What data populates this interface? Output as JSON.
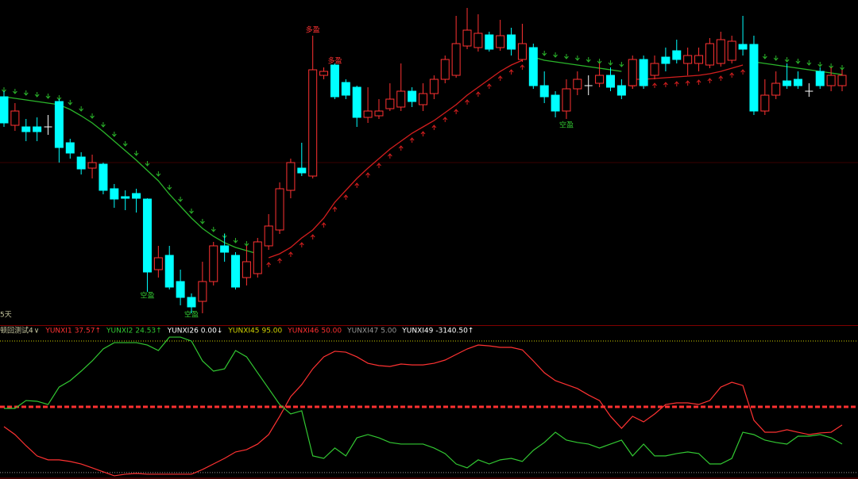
{
  "chart_data": [
    {
      "type": "candlestick",
      "ylim": [
        0,
        400
      ],
      "open": [
        278,
        242,
        240,
        240,
        240,
        272,
        220,
        202,
        188,
        193,
        162,
        152,
        156,
        149,
        60,
        78,
        45,
        25,
        20,
        45,
        90,
        78,
        50,
        55,
        90,
        110,
        160,
        188,
        178,
        305,
        318,
        296,
        290,
        252,
        254,
        263,
        265,
        285,
        268,
        282,
        300,
        305,
        342,
        340,
        356,
        340,
        356,
        325,
        340,
        292,
        280,
        260,
        288,
        292,
        295,
        305,
        292,
        292,
        325,
        305,
        328,
        336,
        320,
        320,
        318,
        320,
        324,
        344,
        344,
        260,
        280,
        298,
        300,
        285,
        310,
        292,
        292
      ],
      "high": [
        285,
        270,
        250,
        252,
        255,
        275,
        225,
        208,
        205,
        195,
        168,
        160,
        162,
        150,
        90,
        90,
        60,
        30,
        70,
        95,
        105,
        82,
        90,
        100,
        130,
        170,
        200,
        220,
        355,
        315,
        320,
        300,
        292,
        290,
        275,
        295,
        320,
        290,
        295,
        305,
        330,
        380,
        390,
        382,
        360,
        375,
        365,
        370,
        345,
        310,
        285,
        300,
        310,
        305,
        320,
        315,
        300,
        330,
        330,
        330,
        340,
        350,
        340,
        340,
        352,
        360,
        355,
        380,
        355,
        300,
        310,
        320,
        310,
        295,
        315,
        315,
        312
      ],
      "low": [
        240,
        235,
        222,
        222,
        230,
        195,
        200,
        180,
        175,
        155,
        138,
        135,
        132,
        32,
        50,
        35,
        15,
        5,
        5,
        40,
        70,
        35,
        40,
        50,
        85,
        105,
        150,
        178,
        175,
        300,
        275,
        275,
        240,
        245,
        250,
        260,
        260,
        265,
        260,
        275,
        295,
        302,
        338,
        335,
        335,
        336,
        330,
        322,
        288,
        270,
        252,
        250,
        280,
        280,
        290,
        285,
        275,
        288,
        288,
        300,
        310,
        320,
        305,
        310,
        314,
        316,
        320,
        330,
        255,
        255,
        275,
        288,
        288,
        278,
        288,
        285,
        285
      ],
      "close": [
        245,
        260,
        234,
        234,
        240,
        214,
        207,
        187,
        195,
        160,
        149,
        150,
        150,
        57,
        75,
        38,
        25,
        13,
        45,
        90,
        82,
        38,
        70,
        95,
        115,
        162,
        195,
        182,
        312,
        310,
        278,
        280,
        252,
        260,
        260,
        275,
        285,
        272,
        282,
        300,
        325,
        345,
        362,
        358,
        338,
        355,
        338,
        345,
        292,
        278,
        260,
        288,
        300,
        292,
        305,
        290,
        280,
        325,
        292,
        320,
        320,
        325,
        330,
        330,
        345,
        350,
        348,
        338,
        260,
        280,
        295,
        292,
        292,
        285,
        292,
        305,
        305
      ],
      "up_color": "#ff3232",
      "down_color": "#00ffff",
      "stop_down": [
        278,
        276,
        274,
        272,
        270,
        268,
        262,
        254,
        245,
        234,
        222,
        210,
        198,
        185,
        172,
        155,
        140,
        125,
        112,
        102,
        94,
        88,
        84,
        80,
        null,
        null,
        null,
        null,
        null,
        null,
        null,
        null,
        null,
        null,
        null,
        null,
        null,
        null,
        null,
        null,
        null,
        null,
        null,
        null,
        null,
        null,
        null,
        null,
        328,
        324,
        322,
        320,
        318,
        316,
        314,
        312,
        310,
        null,
        null,
        null,
        null,
        null,
        null,
        null,
        null,
        null,
        null,
        null,
        322,
        320,
        318,
        316,
        314,
        312,
        310,
        308,
        306
      ],
      "stop_up": [
        null,
        null,
        null,
        null,
        null,
        null,
        null,
        null,
        null,
        null,
        null,
        null,
        null,
        null,
        null,
        null,
        null,
        null,
        null,
        null,
        null,
        null,
        null,
        null,
        75,
        80,
        88,
        100,
        110,
        125,
        145,
        160,
        175,
        188,
        200,
        212,
        222,
        232,
        240,
        248,
        258,
        268,
        280,
        290,
        300,
        310,
        318,
        324,
        null,
        null,
        null,
        null,
        null,
        null,
        null,
        null,
        null,
        300,
        300,
        301,
        302,
        303,
        304,
        305,
        307,
        310,
        314,
        318,
        null,
        null,
        null,
        null,
        null,
        null,
        null,
        null,
        null
      ],
      "stop_down_color": "#2ab52a",
      "stop_up_color": "#d21e1e",
      "annotations": [
        {
          "text": "空盈",
          "index": 13,
          "value": 27,
          "color": "#32c832"
        },
        {
          "text": "空盈",
          "index": 17,
          "value": 3,
          "color": "#32c832"
        },
        {
          "text": "空盈",
          "index": 51,
          "value": 242,
          "color": "#32c832"
        },
        {
          "text": "多盈",
          "index": 28,
          "value": 362,
          "color": "#ff3232"
        },
        {
          "text": "多盈",
          "index": 30,
          "value": 323,
          "color": "#ff3232"
        }
      ]
    },
    {
      "type": "line",
      "period_label": "5天",
      "title": "顿回测试4",
      "title_marker": "∨",
      "ylim": [
        0.6,
        104.8
      ],
      "series": [
        {
          "name": "YUNXI1",
          "color": "#ff3232",
          "arrow": "↑",
          "value_label": "37.57",
          "values": [
            36.4,
            31.0,
            23.4,
            16.4,
            13.7,
            13.7,
            12.6,
            10.9,
            8.2,
            5.5,
            2.8,
            3.9,
            4.4,
            3.9,
            3.9,
            3.9,
            3.9,
            3.9,
            7.1,
            10.9,
            14.7,
            19.1,
            20.7,
            24.5,
            31.0,
            43.5,
            57.0,
            65.2,
            76.0,
            84.2,
            88.0,
            87.4,
            84.2,
            79.8,
            78.2,
            77.6,
            79.3,
            78.7,
            78.7,
            79.8,
            82.0,
            85.8,
            89.6,
            92.3,
            91.7,
            90.7,
            90.7,
            89.0,
            81.4,
            73.3,
            67.9,
            65.2,
            62.5,
            58.1,
            54.3,
            43.5,
            35.3,
            43.5,
            39.7,
            45.1,
            51.6,
            52.7,
            52.7,
            51.6,
            54.3,
            63.5,
            66.8,
            64.6,
            40.8,
            32.6,
            32.6,
            34.3,
            32.6,
            31.0,
            32.1,
            32.6,
            37.57
          ]
        },
        {
          "name": "YUNXI2",
          "color": "#32c832",
          "arrow": "↑",
          "value_label": "24.53",
          "values": [
            48.9,
            48.9,
            54.3,
            53.8,
            51.6,
            63.5,
            67.9,
            74.4,
            81.4,
            89.6,
            93.9,
            93.9,
            93.9,
            92.3,
            88.5,
            97.7,
            97.7,
            95,
            81.4,
            74.4,
            76.0,
            88.5,
            84.2,
            73.3,
            62.5,
            51.6,
            45.1,
            47.3,
            16.4,
            14.7,
            21.8,
            16.4,
            28.8,
            31.0,
            28.8,
            25.6,
            24.5,
            24.5,
            24.5,
            21.8,
            18.0,
            10.9,
            8.2,
            13.7,
            10.9,
            13.7,
            14.7,
            12.6,
            20.2,
            25.6,
            32.6,
            27.2,
            25.6,
            24.5,
            21.8,
            24.5,
            27.2,
            16.4,
            24.5,
            16.4,
            16.4,
            18.0,
            19.1,
            18.0,
            10.9,
            10.9,
            14.7,
            32.6,
            31.0,
            27.2,
            25.6,
            24.5,
            29.9,
            29.9,
            31.0,
            28.8,
            24.53
          ]
        }
      ],
      "readouts": [
        {
          "name": "YUNXI26",
          "color": "#ffffff",
          "value_label": "0.00",
          "arrow": "↓"
        }
      ],
      "levels": [
        {
          "name": "YUNXI45",
          "value": 95,
          "value_label": "95.00",
          "color": "#d2d200",
          "style": "dotted"
        },
        {
          "name": "YUNXI46",
          "value": 50,
          "value_label": "50.00",
          "color": "#ff3030",
          "style": "dashed"
        },
        {
          "name": "YUNXI47",
          "value": 5,
          "value_label": "5.00",
          "color": "#969696",
          "style": "dotted"
        }
      ],
      "extra_readouts": [
        {
          "name": "YUNXI49",
          "color": "#ffffff",
          "value_label": "-3140.50",
          "arrow": "↑"
        }
      ]
    }
  ]
}
